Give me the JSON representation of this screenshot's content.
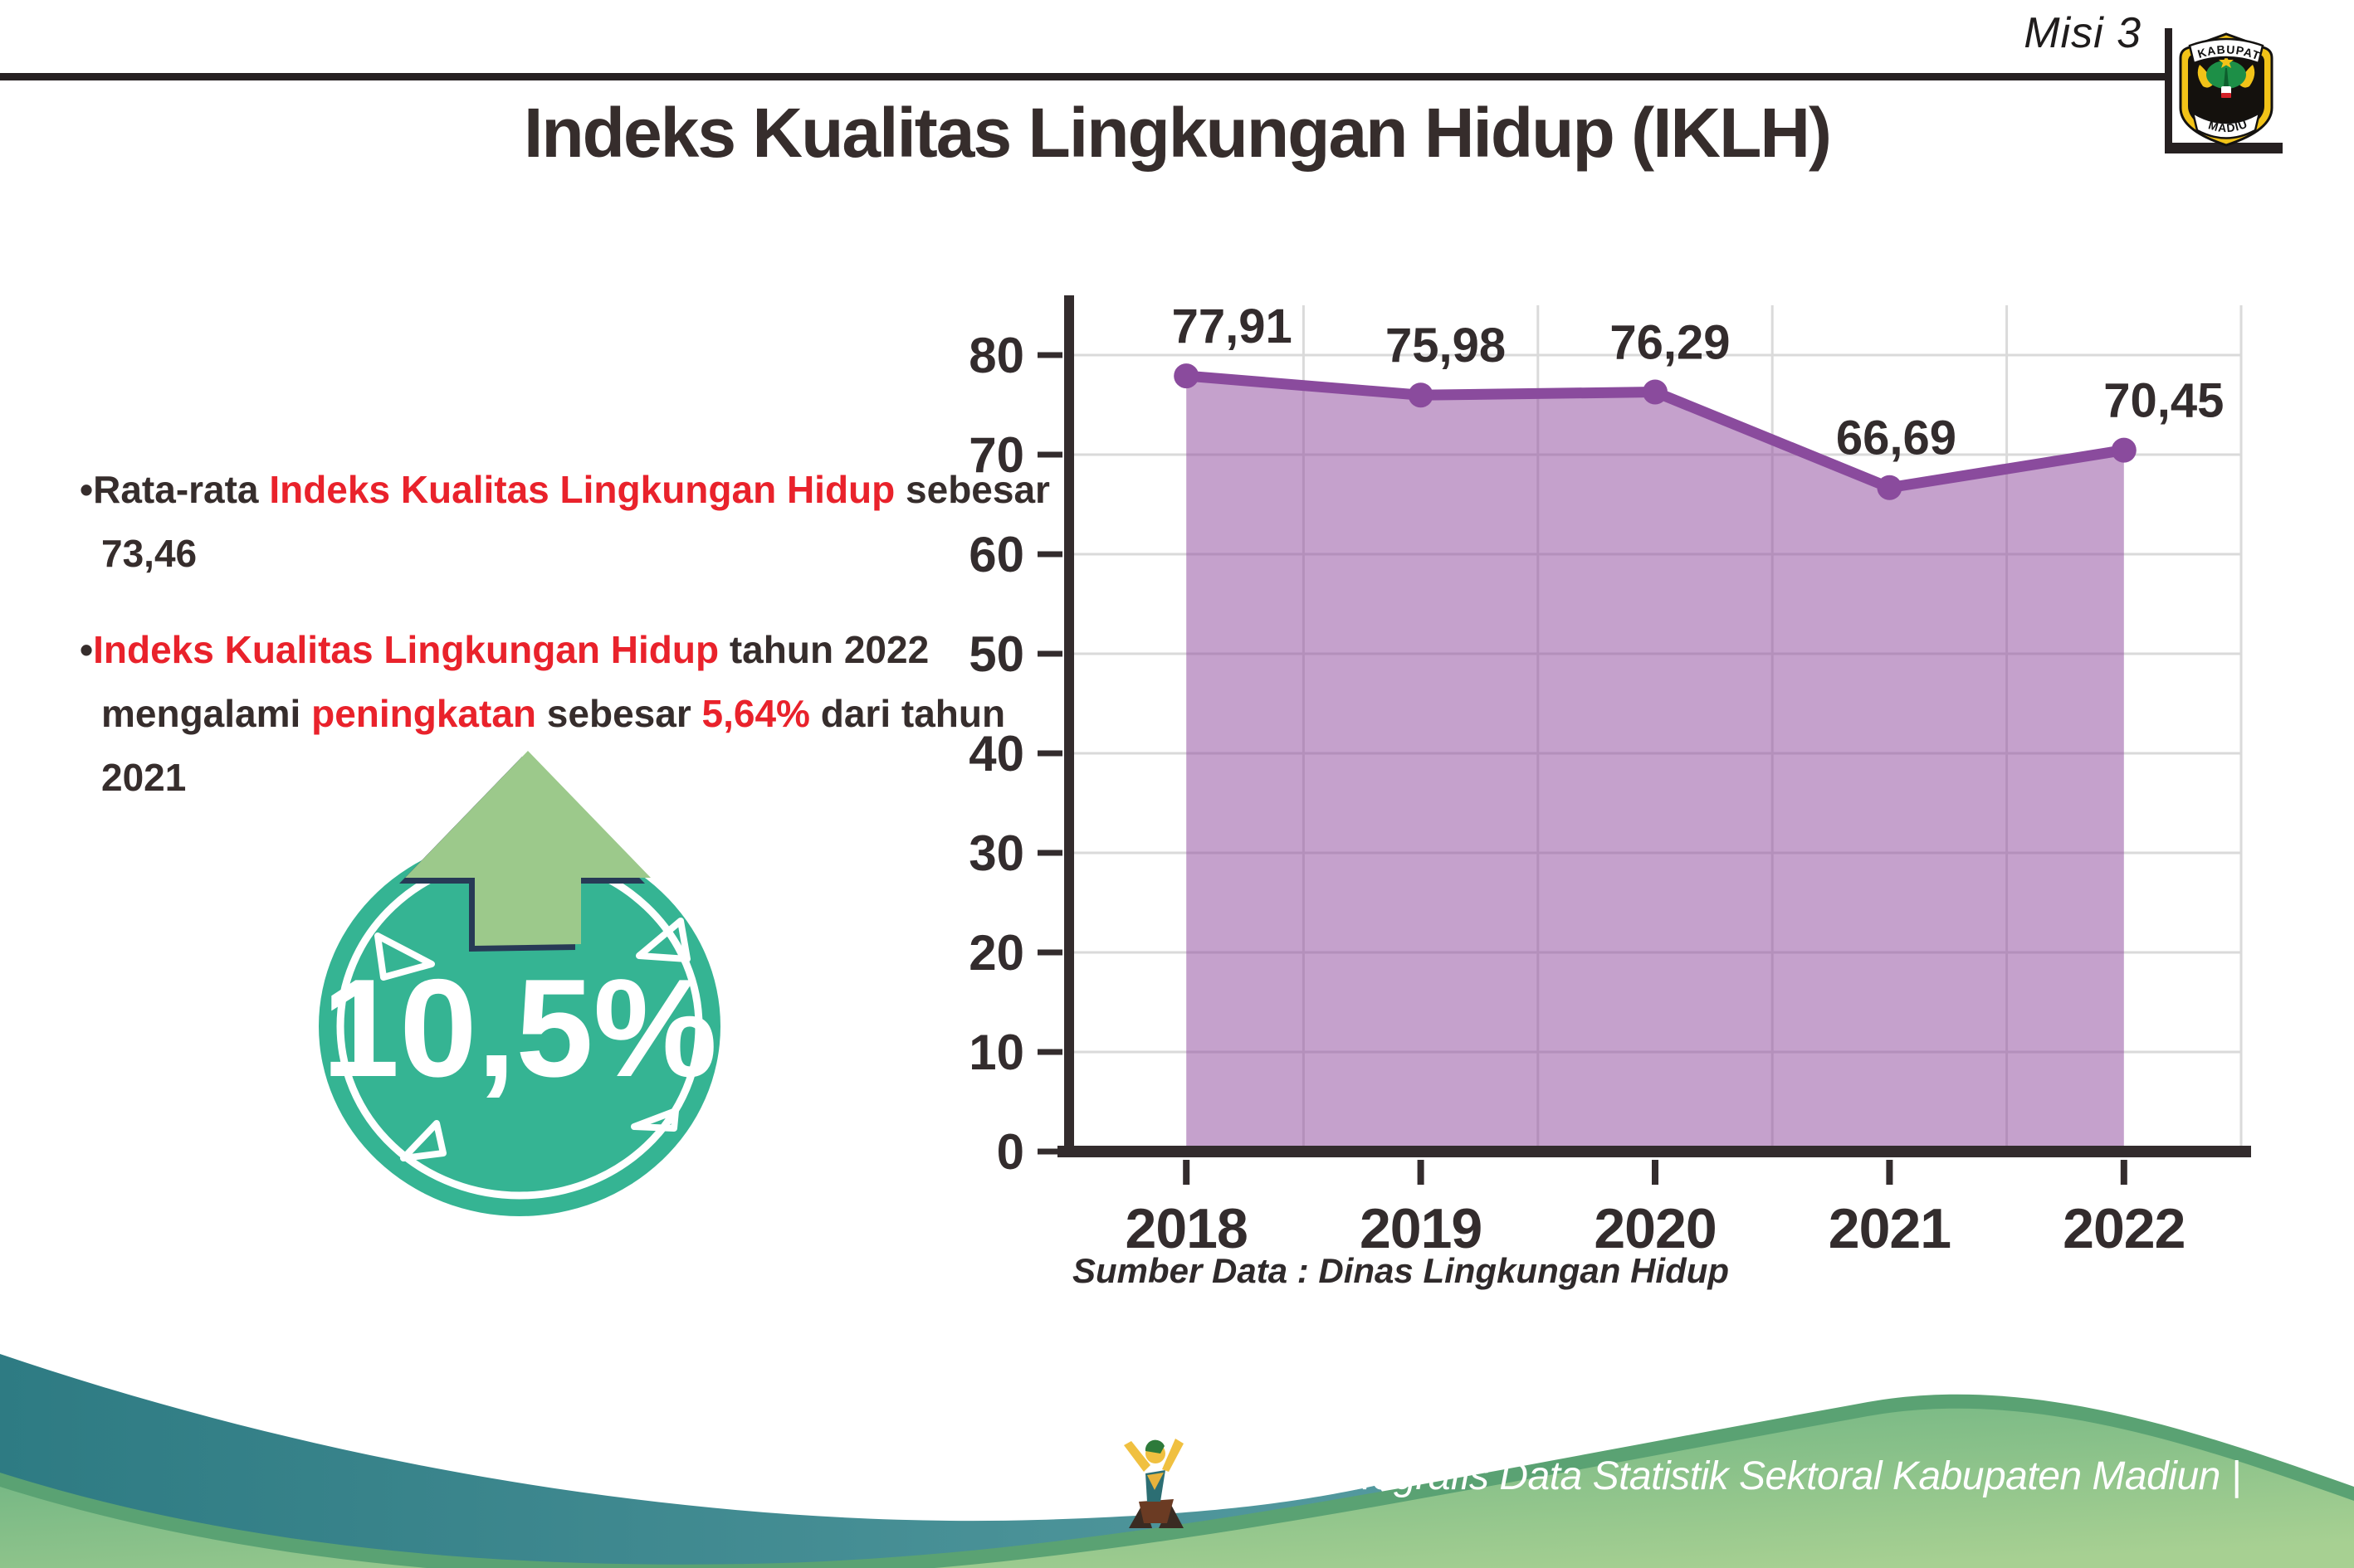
{
  "header": {
    "misi": "Misi 3",
    "title": "Indeks Kualitas Lingkungan Hidup (IKLH)",
    "logo_top": "KABUPATEN",
    "logo_bottom": "MADIUN"
  },
  "bullets": {
    "marker": "•",
    "b1": [
      {
        "t": "Rata-rata ",
        "c": "dark"
      },
      {
        "t": "Indeks Kualitas Lingkungan Hidup",
        "c": "red"
      },
      {
        "t": " sebesar 73,46",
        "c": "dark"
      }
    ],
    "b2": [
      {
        "t": "Indeks Kualitas Lingkungan Hidup",
        "c": "red"
      },
      {
        "t": " tahun 2022 mengalami ",
        "c": "dark"
      },
      {
        "t": "peningkatan",
        "c": "red"
      },
      {
        "t": " sebesar ",
        "c": "dark"
      },
      {
        "t": "5,64%",
        "c": "red"
      },
      {
        "t": " dari tahun 2021",
        "c": "dark"
      }
    ]
  },
  "badge": {
    "value": "10,5%"
  },
  "chart_data": {
    "type": "area",
    "categories": [
      "2018",
      "2019",
      "2020",
      "2021",
      "2022"
    ],
    "values": [
      77.91,
      75.98,
      76.29,
      66.69,
      70.45
    ],
    "point_labels": [
      "77,91",
      "75,98",
      "76,29",
      "66,69",
      "70,45"
    ],
    "title": "",
    "xlabel": "",
    "ylabel": "",
    "ylim": [
      0,
      80
    ],
    "ytick_step": 10,
    "grid": true,
    "legend": false,
    "source": "Sumber Data : Dinas Lingkungan Hidup"
  },
  "footer": {
    "text": "Media Infografis Data Statistik Sektoral Kabupaten Madiun |"
  },
  "colors": {
    "accent_red": "#e9222b",
    "text_dark": "#362d2c",
    "chart_line": "#8a4b9d",
    "chart_fill": "rgba(150,84,162,0.55)",
    "badge_teal": "#35b493",
    "arrow_green": "#9cc98b",
    "wave_teal": "#2e7b83",
    "wave_green": "#7cbd88"
  }
}
